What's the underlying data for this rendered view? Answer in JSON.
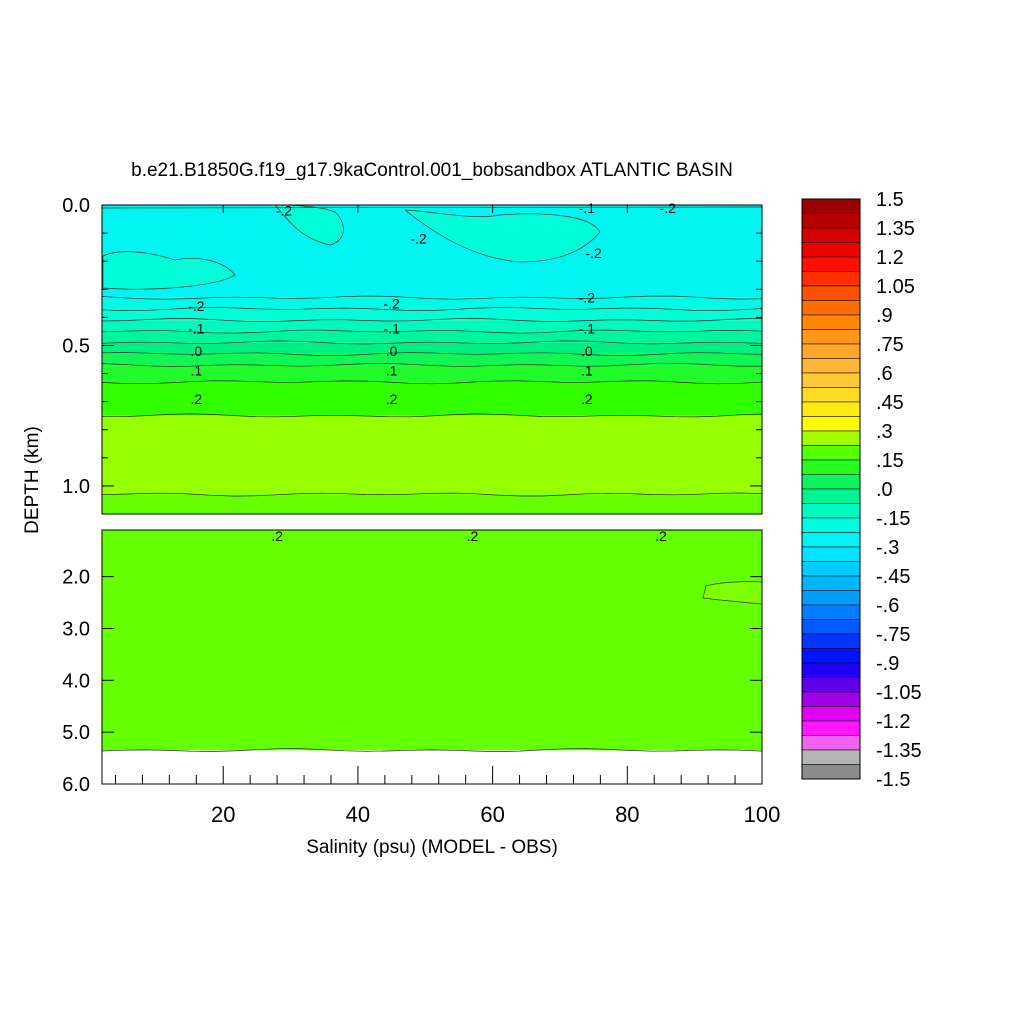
{
  "chart_data": {
    "type": "heatmap",
    "title": "b.e21.B1850G.f19_g17.9kaControl.001_bobsandbox ATLANTIC BASIN",
    "xlabel": "Salinity (psu) (MODEL - OBS)",
    "ylabel": "DEPTH (km)",
    "xlim": [
      2,
      100
    ],
    "x_ticks": [
      "20",
      "40",
      "60",
      "80",
      "100"
    ],
    "x_tick_values": [
      20,
      40,
      60,
      80,
      100
    ],
    "upper_panel": {
      "ylim": [
        0.0,
        1.1
      ],
      "y_ticks": [
        "0.0",
        "0.5",
        "1.0"
      ],
      "y_tick_values": [
        0.0,
        0.5,
        1.0
      ]
    },
    "lower_panel": {
      "ylim": [
        1.1,
        6.0
      ],
      "y_ticks": [
        "2.0",
        "3.0",
        "4.0",
        "5.0",
        "6.0"
      ],
      "y_tick_values": [
        2.0,
        3.0,
        4.0,
        5.0,
        6.0
      ]
    },
    "depth_profile": [
      {
        "depth": 0.0,
        "value": -0.25
      },
      {
        "depth": 0.33,
        "value": -0.2
      },
      {
        "depth": 0.37,
        "value": -0.15
      },
      {
        "depth": 0.41,
        "value": -0.1
      },
      {
        "depth": 0.45,
        "value": -0.05
      },
      {
        "depth": 0.49,
        "value": 0.0
      },
      {
        "depth": 0.53,
        "value": 0.05
      },
      {
        "depth": 0.57,
        "value": 0.1
      },
      {
        "depth": 0.63,
        "value": 0.15
      },
      {
        "depth": 0.75,
        "value": 0.25
      },
      {
        "depth": 1.03,
        "value": 0.2
      },
      {
        "depth": 5.35,
        "value": null
      }
    ],
    "contour_labels": [
      {
        "text": "-.2",
        "x": 29,
        "depth": 0.02,
        "panel": "upper"
      },
      {
        "text": "-.1",
        "x": 74,
        "depth": 0.01,
        "panel": "upper"
      },
      {
        "text": "-.2",
        "x": 86,
        "depth": 0.01,
        "panel": "upper"
      },
      {
        "text": "-.2",
        "x": 49,
        "depth": 0.12,
        "panel": "upper"
      },
      {
        "text": "-.2",
        "x": 75,
        "depth": 0.17,
        "panel": "upper"
      },
      {
        "text": "-.2",
        "x": 16,
        "depth": 0.36,
        "panel": "upper"
      },
      {
        "text": "-.2",
        "x": 45,
        "depth": 0.35,
        "panel": "upper"
      },
      {
        "text": "-.2",
        "x": 74,
        "depth": 0.33,
        "panel": "upper"
      },
      {
        "text": "-.1",
        "x": 16,
        "depth": 0.44,
        "panel": "upper"
      },
      {
        "text": "-.1",
        "x": 45,
        "depth": 0.44,
        "panel": "upper"
      },
      {
        "text": "-.1",
        "x": 74,
        "depth": 0.44,
        "panel": "upper"
      },
      {
        "text": ".0",
        "x": 16,
        "depth": 0.52,
        "panel": "upper"
      },
      {
        "text": ".0",
        "x": 45,
        "depth": 0.52,
        "panel": "upper"
      },
      {
        "text": ".0",
        "x": 74,
        "depth": 0.52,
        "panel": "upper"
      },
      {
        "text": ".1",
        "x": 16,
        "depth": 0.59,
        "panel": "upper"
      },
      {
        "text": ".1",
        "x": 45,
        "depth": 0.59,
        "panel": "upper"
      },
      {
        "text": ".1",
        "x": 74,
        "depth": 0.59,
        "panel": "upper"
      },
      {
        "text": ".2",
        "x": 16,
        "depth": 0.69,
        "panel": "upper"
      },
      {
        "text": ".2",
        "x": 45,
        "depth": 0.69,
        "panel": "upper"
      },
      {
        "text": ".2",
        "x": 74,
        "depth": 0.69,
        "panel": "upper"
      },
      {
        "text": ".2",
        "x": 28,
        "depth": 1.22,
        "panel": "lower"
      },
      {
        "text": ".2",
        "x": 57,
        "depth": 1.22,
        "panel": "lower"
      },
      {
        "text": ".2",
        "x": 85,
        "depth": 1.22,
        "panel": "lower"
      }
    ],
    "colorbar": {
      "min": -1.5,
      "max": 1.5,
      "labels": [
        "1.5",
        "1.35",
        "1.2",
        "1.05",
        ".9",
        ".75",
        ".6",
        ".45",
        ".3",
        ".15",
        ".0",
        "-.15",
        "-.3",
        "-.45",
        "-.6",
        "-.75",
        "-.9",
        "-1.05",
        "-1.2",
        "-1.35",
        "-1.5"
      ],
      "label_values": [
        1.5,
        1.35,
        1.2,
        1.05,
        0.9,
        0.75,
        0.6,
        0.45,
        0.3,
        0.15,
        0.0,
        -0.15,
        -0.3,
        -0.45,
        -0.6,
        -0.75,
        -0.9,
        -1.05,
        -1.2,
        -1.35,
        -1.5
      ],
      "stops": [
        {
          "value": 1.5,
          "color": "#8c0000"
        },
        {
          "value": 1.2,
          "color": "#ff0000"
        },
        {
          "value": 0.9,
          "color": "#ff7f00"
        },
        {
          "value": 0.6,
          "color": "#ffbf40"
        },
        {
          "value": 0.33,
          "color": "#ffff00"
        },
        {
          "value": 0.3,
          "color": "#c8ff00"
        },
        {
          "value": 0.15,
          "color": "#32ff00"
        },
        {
          "value": 0.0,
          "color": "#00f080"
        },
        {
          "value": -0.15,
          "color": "#00ffd8"
        },
        {
          "value": -0.3,
          "color": "#00f0ff"
        },
        {
          "value": -0.6,
          "color": "#0090ff"
        },
        {
          "value": -0.9,
          "color": "#0000ff"
        },
        {
          "value": -1.05,
          "color": "#8000e0"
        },
        {
          "value": -1.2,
          "color": "#ff00ff"
        },
        {
          "value": -1.3,
          "color": "#ff40ff"
        },
        {
          "value": -1.35,
          "color": "#c8c8c8"
        },
        {
          "value": -1.5,
          "color": "#787878"
        }
      ]
    }
  }
}
